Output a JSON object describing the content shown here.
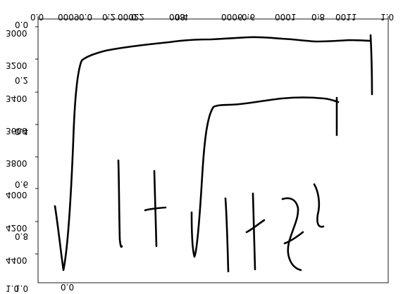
{
  "chart_data": {
    "type": "line",
    "note_glyph_text": "√|+√|+∫ₓ",
    "axes": {
      "top_x": {
        "scale": "mirrored",
        "ticks": [
          "0.0",
          "0.2",
          "0.4",
          "0.6",
          "0.8",
          "1.0"
        ],
        "labels_printed": [
          "0.0",
          "0000",
          "0.0",
          "0.2",
          "0002",
          "0.2",
          "008",
          "0.4",
          "0006",
          "0.6",
          "0001",
          "0.8",
          "0.8",
          "0011",
          "1.0"
        ]
      },
      "left_y": {
        "scale": "mirrored",
        "ticks": [
          "3000",
          "3200",
          "3400",
          "3600",
          "3800",
          "4000",
          "4200",
          "4400"
        ],
        "secondary_ticks": [
          "0.0",
          "0.2",
          "0.4",
          "0.6",
          "0.8",
          "1.0"
        ]
      },
      "bottom_x": {
        "ticks": [
          "0.0"
        ]
      }
    },
    "top_tick_labels": [
      {
        "text": "0.0"
      },
      {
        "text": "0009"
      },
      {
        "text": "0.0"
      },
      {
        "text": "0.2"
      },
      {
        "text": "0002"
      },
      {
        "text": "0.2"
      },
      {
        "text": "008"
      },
      {
        "text": "0.4"
      },
      {
        "text": "0006"
      },
      {
        "text": "0.6"
      },
      {
        "text": "0001"
      },
      {
        "text": "0.8"
      },
      {
        "text": "0011"
      },
      {
        "text": "1.0"
      }
    ],
    "left_tick_labels": [
      {
        "text": "3000"
      },
      {
        "text": "0.0"
      },
      {
        "text": "3200"
      },
      {
        "text": "0.2"
      },
      {
        "text": "3400"
      },
      {
        "text": "3600"
      },
      {
        "text": "0.4"
      },
      {
        "text": "3800"
      },
      {
        "text": "0.6"
      },
      {
        "text": "4000"
      },
      {
        "text": "4200"
      },
      {
        "text": "0.8"
      },
      {
        "text": "4400"
      },
      {
        "text": "1.0"
      },
      {
        "text": "1.0"
      }
    ],
    "bottom_tick_labels": [
      {
        "text": "0.0"
      }
    ]
  }
}
